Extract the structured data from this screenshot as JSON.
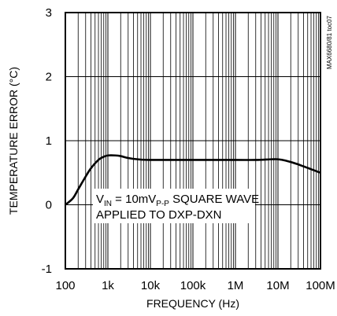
{
  "chart_data": {
    "type": "line",
    "xlabel": "FREQUENCY (Hz)",
    "ylabel": "TEMPERATURE ERROR (°C)",
    "xscale": "log",
    "xlim": [
      100,
      100000000
    ],
    "ylim": [
      -1,
      3
    ],
    "grid": true,
    "xticks": [
      {
        "value": 100,
        "label": "100"
      },
      {
        "value": 1000,
        "label": "1k"
      },
      {
        "value": 10000,
        "label": "10k"
      },
      {
        "value": 100000,
        "label": "100k"
      },
      {
        "value": 1000000,
        "label": "1M"
      },
      {
        "value": 10000000,
        "label": "10M"
      },
      {
        "value": 100000000,
        "label": "100M"
      }
    ],
    "yticks": [
      {
        "value": -1,
        "label": "-1"
      },
      {
        "value": 0,
        "label": "0"
      },
      {
        "value": 1,
        "label": "1"
      },
      {
        "value": 2,
        "label": "2"
      },
      {
        "value": 3,
        "label": "3"
      }
    ],
    "series": [
      {
        "x": [
          100,
          150,
          200,
          300,
          400,
          600,
          800,
          1000,
          1500,
          2000,
          3000,
          5000,
          10000,
          100000,
          1000000,
          3000000,
          7000000,
          10000000,
          15000000,
          30000000,
          100000000
        ],
        "y": [
          0.0,
          0.1,
          0.24,
          0.44,
          0.57,
          0.7,
          0.75,
          0.77,
          0.77,
          0.76,
          0.73,
          0.71,
          0.7,
          0.7,
          0.7,
          0.7,
          0.71,
          0.71,
          0.69,
          0.63,
          0.5
        ]
      }
    ],
    "annotation": {
      "line1_v": "V",
      "line1_v_sub": "IN",
      "line1_mid": " = 10mV",
      "line1_pp_sub": "P-P",
      "line1_end": " SQUARE WAVE",
      "line2": "APPLIED TO DXP-DXN"
    },
    "figure_tag": "MAX6680/81 toc07"
  }
}
